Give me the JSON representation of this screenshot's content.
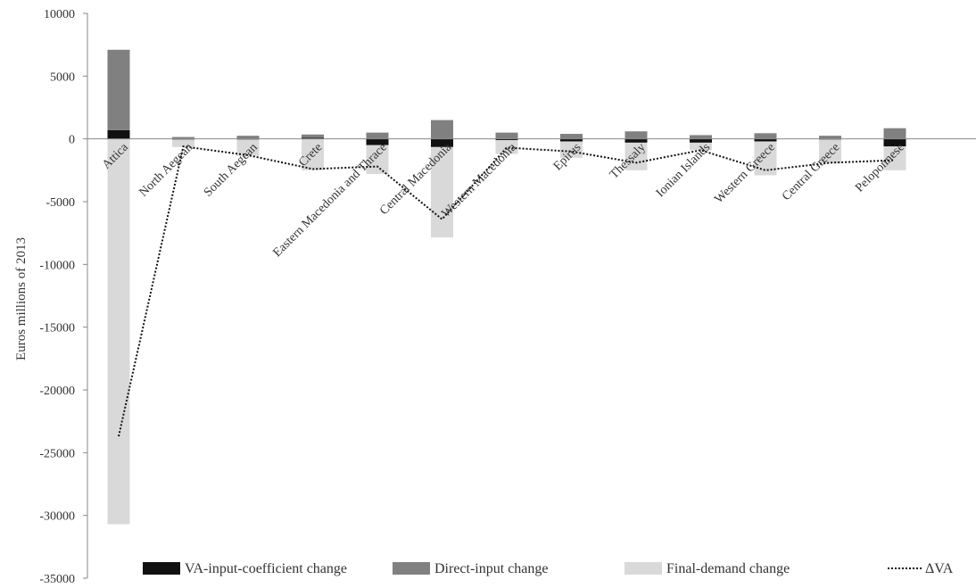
{
  "chart_data": {
    "type": "bar",
    "stacked": true,
    "ylabel": "Euros millions of 2013",
    "ylim": [
      -35000,
      10000
    ],
    "yticks": [
      10000,
      5000,
      0,
      -5000,
      -10000,
      -15000,
      -20000,
      -25000,
      -30000,
      -35000
    ],
    "ytick_labels": [
      "10000",
      "5000",
      "0",
      "-5000",
      "-10000",
      "-15000",
      "-20000",
      "-25000",
      "-30000",
      "-35000"
    ],
    "grid": false,
    "legend_position": "bottom",
    "categories": [
      "Attica",
      "North Aegean",
      "South Aegean",
      "Crete",
      "Eastern Macedonia and Thrace",
      "Central Macedonia",
      "Western Macedonia",
      "Epirus",
      "Thessaly",
      "Ionian Islands",
      "Western Greece",
      "Central Greece",
      "Peloponnese"
    ],
    "series": [
      {
        "name": "VA-input-coefficient change",
        "kind": "bar",
        "color": "#111111",
        "values": [
          700,
          -50,
          -50,
          100,
          -500,
          -650,
          -100,
          -200,
          -300,
          -300,
          -200,
          -50,
          -600
        ]
      },
      {
        "name": "Direct-input change",
        "kind": "bar",
        "color": "#808080",
        "values": [
          6400,
          150,
          250,
          250,
          500,
          1500,
          500,
          400,
          600,
          300,
          450,
          250,
          850
        ]
      },
      {
        "name": "Final-demand change",
        "kind": "bar",
        "color": "#d9d9d9",
        "values": [
          -30700,
          -600,
          -1300,
          -2500,
          -2300,
          -7200,
          -1100,
          -1300,
          -2200,
          -600,
          -2700,
          -1900,
          -1900
        ]
      },
      {
        "name": "ΔVA",
        "kind": "line",
        "style": "dotted",
        "color": "#111111",
        "values": [
          -23700,
          -600,
          -1300,
          -2400,
          -2200,
          -6400,
          -700,
          -1000,
          -1900,
          -900,
          -2500,
          -1900,
          -1700
        ]
      }
    ]
  }
}
